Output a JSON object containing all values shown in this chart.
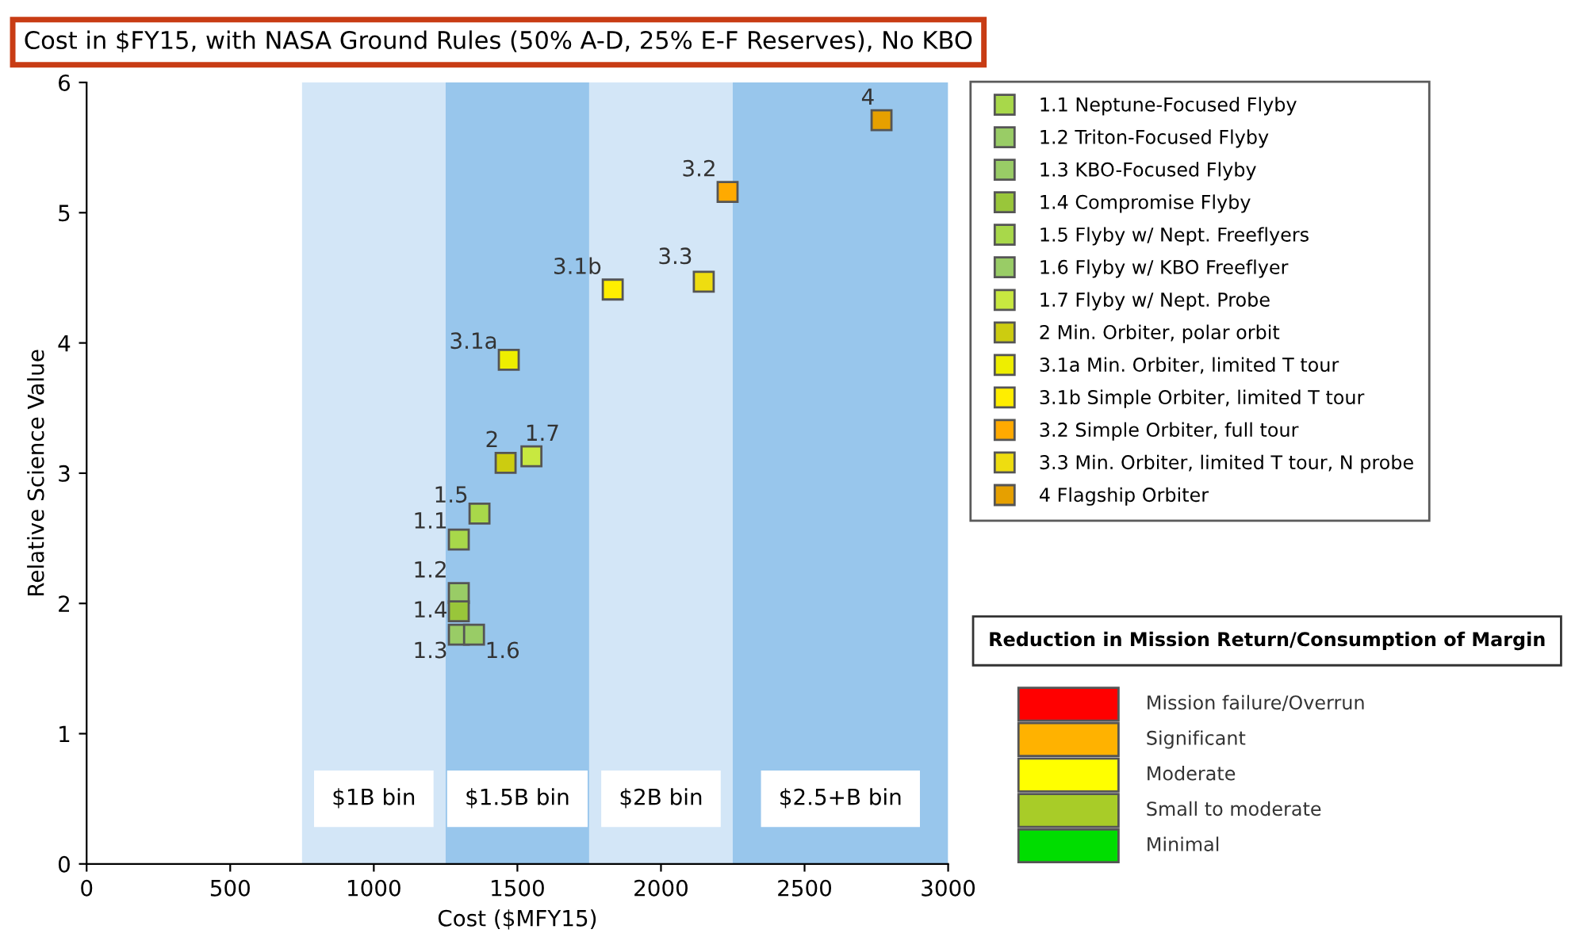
{
  "chart_data": [
    {
      "type": "scatter",
      "title": "Cost in $FY15, with NASA Ground Rules (50% A-D, 25% E-F Reserves), No KBO",
      "xlabel": "Cost ($MFY15)",
      "ylabel": "Relative Science Value",
      "xlim": [
        0,
        3000
      ],
      "xticks": [
        0,
        500,
        1000,
        1500,
        2000,
        2500,
        3000
      ],
      "ylim": [
        0,
        6
      ],
      "yticks": [
        0,
        1,
        2,
        3,
        4,
        5,
        6
      ],
      "grid": false,
      "legend": "right",
      "marker": "square",
      "bands": [
        {
          "axis": "x",
          "from": 750,
          "to": 1250,
          "label": "$1B bin",
          "color": "#d3e6f7"
        },
        {
          "axis": "x",
          "from": 1250,
          "to": 1750,
          "label": "$1.5B bin",
          "color": "#98c6ec"
        },
        {
          "axis": "x",
          "from": 1750,
          "to": 2250,
          "label": "$2B bin",
          "color": "#d3e6f7"
        },
        {
          "axis": "x",
          "from": 2250,
          "to": 3000,
          "label": "$2.5+B bin",
          "color": "#98c6ec"
        }
      ],
      "series": [
        {
          "name": "1.1 Neptune-Focused Flyby",
          "color": "#a8d84a",
          "x": [
            1296
          ],
          "values": [
            2.49
          ]
        },
        {
          "name": "1.2 Triton-Focused Flyby",
          "color": "#99cc66",
          "x": [
            1296
          ],
          "values": [
            2.08
          ]
        },
        {
          "name": "1.3 KBO-Focused Flyby",
          "color": "#99cc66",
          "x": [
            1296
          ],
          "values": [
            1.76
          ]
        },
        {
          "name": "1.4 Compromise Flyby",
          "color": "#99c63a",
          "x": [
            1296
          ],
          "values": [
            1.94
          ]
        },
        {
          "name": "1.5 Flyby w/ Nept. Freeflyers",
          "color": "#a8d84a",
          "x": [
            1368
          ],
          "values": [
            2.69
          ]
        },
        {
          "name": "1.6 Flyby w/ KBO Freeflyer",
          "color": "#99cc66",
          "x": [
            1349
          ],
          "values": [
            1.76
          ]
        },
        {
          "name": "1.7 Flyby w/ Nept. Probe",
          "color": "#c8e840",
          "x": [
            1549
          ],
          "values": [
            3.13
          ]
        },
        {
          "name": "2 Min. Orbiter, polar orbit",
          "color": "#cccc10",
          "x": [
            1459
          ],
          "values": [
            3.08
          ]
        },
        {
          "name": "3.1a Min. Orbiter, limited T tour",
          "color": "#eeee00",
          "x": [
            1470
          ],
          "values": [
            3.87
          ]
        },
        {
          "name": "3.1b Simple Orbiter, limited T tour",
          "color": "#ffee00",
          "x": [
            1832
          ],
          "values": [
            4.41
          ]
        },
        {
          "name": "3.2 Simple Orbiter, full tour",
          "color": "#ffaa00",
          "x": [
            2232
          ],
          "values": [
            5.16
          ]
        },
        {
          "name": "3.3 Min. Orbiter, limited T tour, N probe",
          "color": "#eedd10",
          "x": [
            2149
          ],
          "values": [
            4.47
          ]
        },
        {
          "name": "4 Flagship Orbiter",
          "color": "#e6a000",
          "x": [
            2768
          ],
          "values": [
            5.71
          ]
        }
      ],
      "annotations": [
        {
          "text": "1.1",
          "x": 1296,
          "y": 2.49
        },
        {
          "text": "1.2",
          "x": 1296,
          "y": 2.08
        },
        {
          "text": "1.3",
          "x": 1296,
          "y": 1.76
        },
        {
          "text": "1.4",
          "x": 1296,
          "y": 1.94
        },
        {
          "text": "1.5",
          "x": 1368,
          "y": 2.69
        },
        {
          "text": "1.6",
          "x": 1349,
          "y": 1.76
        },
        {
          "text": "1.7",
          "x": 1549,
          "y": 3.13
        },
        {
          "text": "2",
          "x": 1459,
          "y": 3.08
        },
        {
          "text": "3.1a",
          "x": 1470,
          "y": 3.87
        },
        {
          "text": "3.1b",
          "x": 1832,
          "y": 4.41
        },
        {
          "text": "3.2",
          "x": 2232,
          "y": 5.16
        },
        {
          "text": "3.3",
          "x": 2149,
          "y": 4.47
        },
        {
          "text": "4",
          "x": 2768,
          "y": 5.71
        }
      ]
    },
    {
      "type": "other",
      "title": "Reduction in Mission Return/Consumption of Margin",
      "categories": [
        "Mission failure/Overrun",
        "Significant",
        "Moderate",
        "Small to moderate",
        "Minimal"
      ],
      "colors": [
        "#ff0000",
        "#ffb200",
        "#ffff00",
        "#a8cc28",
        "#00dd00"
      ]
    }
  ]
}
